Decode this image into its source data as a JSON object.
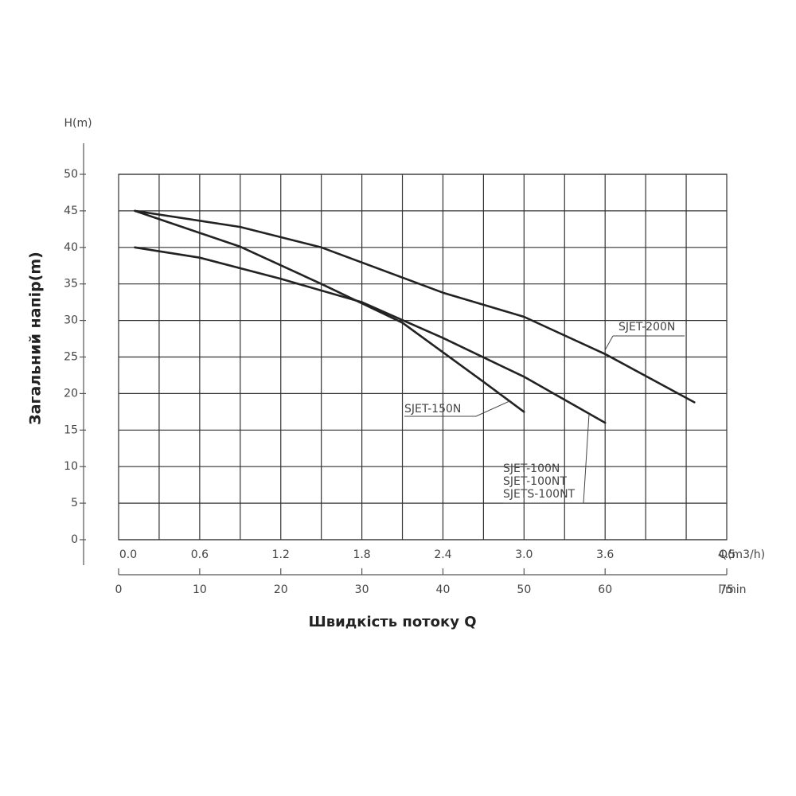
{
  "chart_data": {
    "type": "line",
    "y_axis_title": "Загальний напір(m)",
    "y_unit_label": "H(m)",
    "x_axis_title": "Швидкість потоку Q",
    "x2_unit_label": "Q(m3/h)",
    "x_unit_label": "l/min",
    "xlim": [
      0,
      75
    ],
    "xticks": [
      0,
      10,
      20,
      30,
      40,
      50,
      60,
      75
    ],
    "x2lim": [
      0,
      4.5
    ],
    "x2ticks": [
      {
        "value": 0,
        "label": "0.0"
      },
      0.6,
      1.2,
      1.8,
      2.4,
      {
        "value": 3,
        "label": "3.0"
      },
      3.6,
      4.5
    ],
    "ylim": [
      0,
      50
    ],
    "yticks": [
      0,
      5,
      10,
      15,
      20,
      25,
      30,
      35,
      40,
      45,
      50
    ],
    "grid": true,
    "series": [
      {
        "labels": [
          "SJET-200N"
        ],
        "color": "#222222",
        "x": [
          2,
          15,
          25,
          40,
          50,
          60,
          71
        ],
        "values": [
          45,
          42.8,
          40,
          33.8,
          30.5,
          25.4,
          18.8
        ]
      },
      {
        "labels": [
          "SJET-150N"
        ],
        "color": "#222222",
        "x": [
          2,
          15,
          25,
          35,
          45,
          50
        ],
        "values": [
          45,
          40.1,
          35,
          29.7,
          21.6,
          17.5
        ]
      },
      {
        "labels": [
          "SJET-100N",
          "SJET-100NT",
          "SJETS-100NT"
        ],
        "color": "#222222",
        "x": [
          2,
          10,
          20,
          30,
          40,
          50,
          60
        ],
        "values": [
          40,
          38.6,
          35.7,
          32.5,
          27.6,
          22.3,
          16
        ]
      }
    ]
  }
}
